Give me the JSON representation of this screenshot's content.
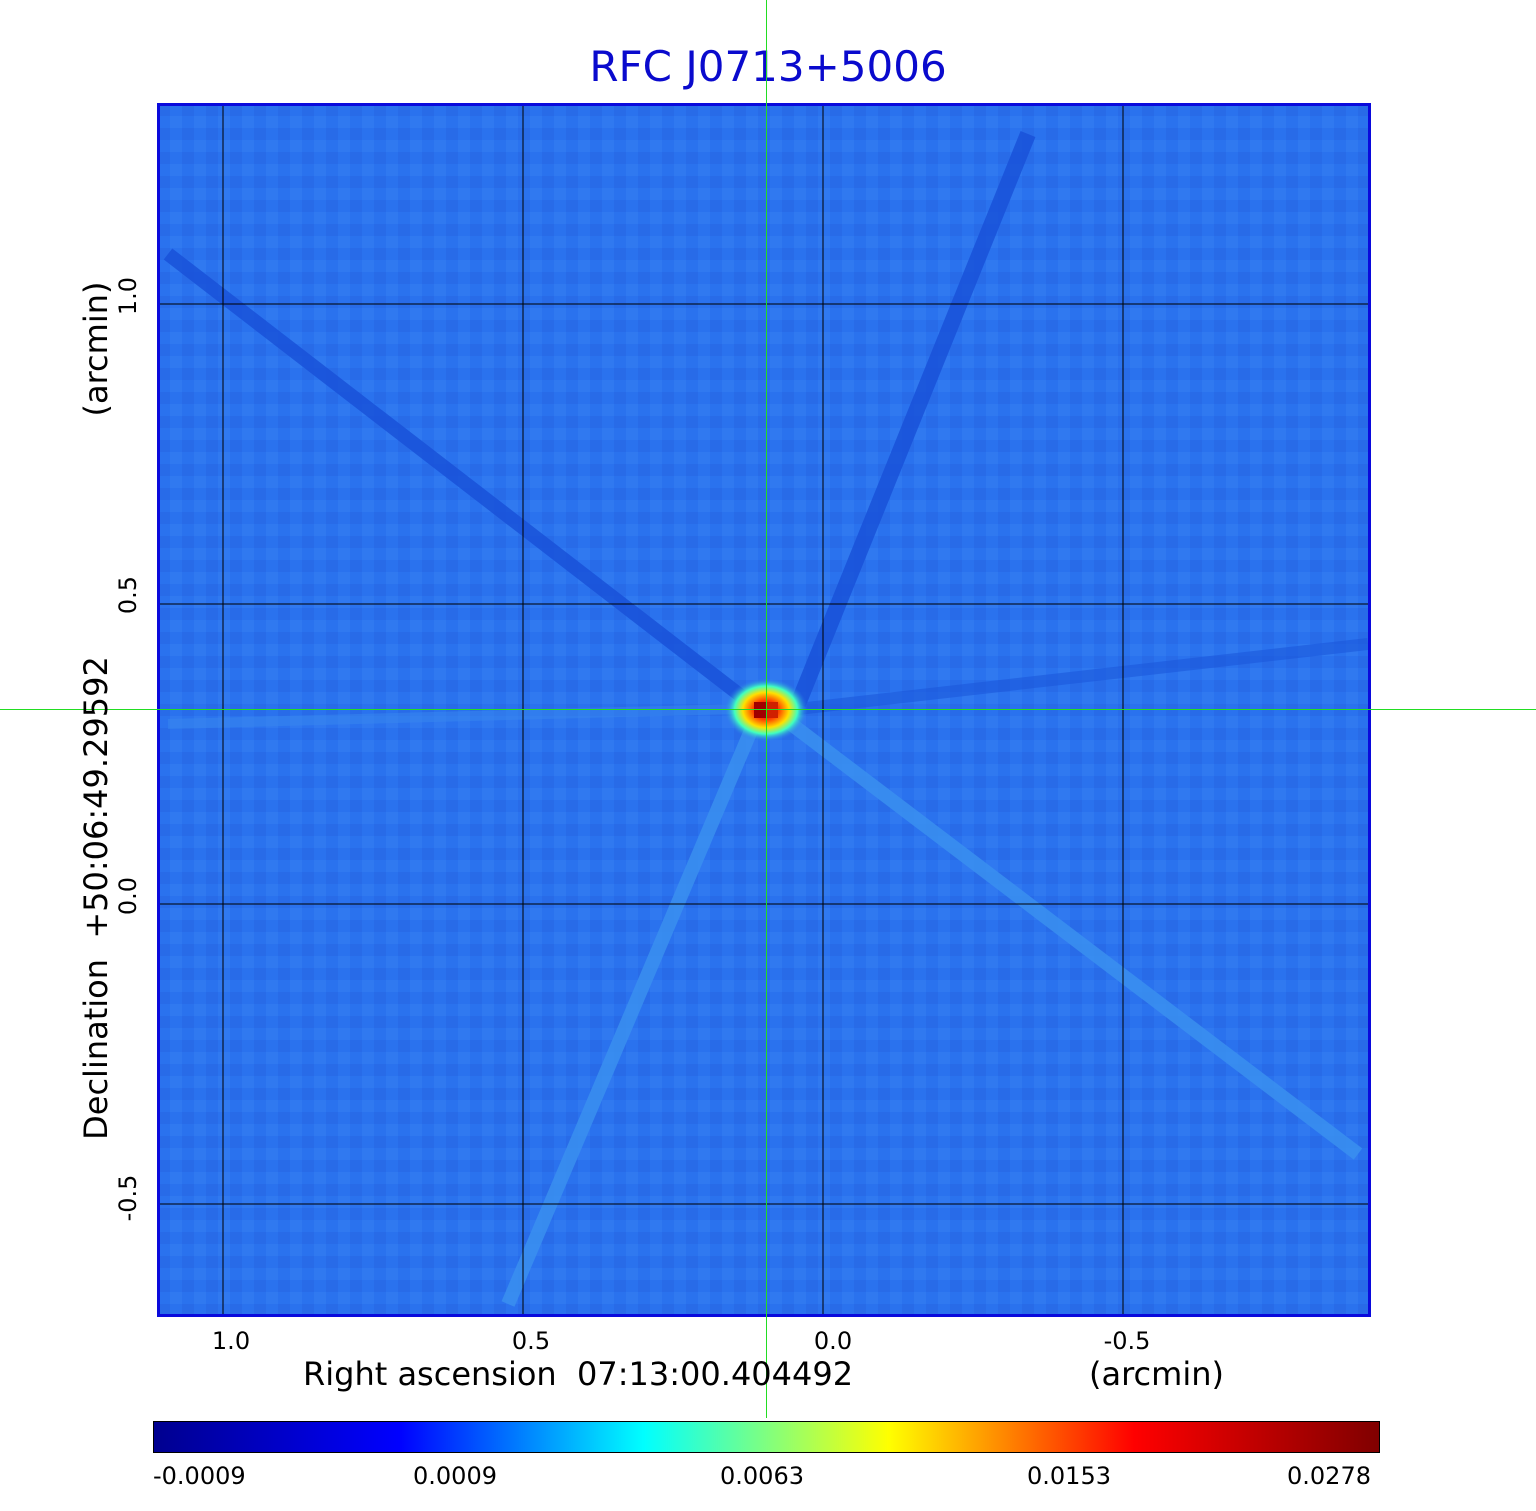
{
  "title": "RFC J0713+5006",
  "x_axis": {
    "label": "Right ascension  07:13:00.404492",
    "unit": "(arcmin)",
    "ticks": [
      "1.0",
      "0.5",
      "0.0",
      "-0.5"
    ]
  },
  "y_axis": {
    "label": "Declination  +50:06:49.29592",
    "unit": "(arcmin)",
    "ticks": [
      "1.0",
      "0.5",
      "0.0",
      "-0.5"
    ]
  },
  "colorbar": {
    "ticks": [
      "-0.0009",
      "0.0009",
      "0.0063",
      "0.0153",
      "0.0278"
    ],
    "colormap": [
      "#00008f",
      "#0000ff",
      "#00ffff",
      "#ffff00",
      "#ff0000",
      "#800000"
    ]
  },
  "colors": {
    "title": "#0a0acd",
    "frame": "#0a0adc",
    "crosshair": "#22dd22",
    "background_field": "#2a72ee"
  }
}
